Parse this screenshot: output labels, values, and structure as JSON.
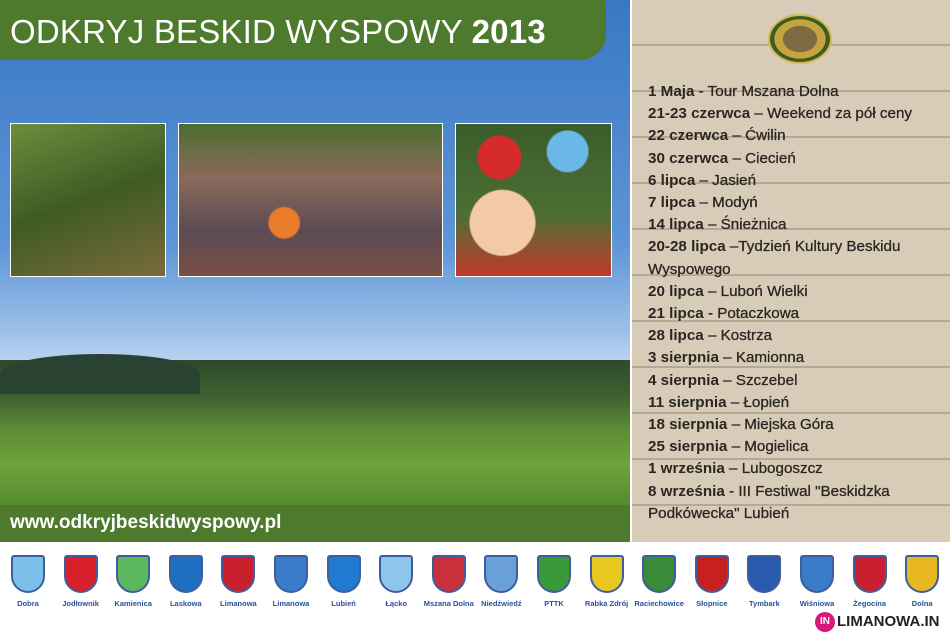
{
  "title": {
    "main": "ODKRYJ BESKID WYSPOWY",
    "year": "2013"
  },
  "website": "www.odkryjbeskidwyspowy.pl",
  "events": [
    {
      "date": "1 Maja",
      "sep": " - ",
      "name": "Tour Mszana Dolna"
    },
    {
      "date": "21-23 czerwca",
      "sep": " – ",
      "name": "Weekend za pół ceny"
    },
    {
      "date": "22 czerwca",
      "sep": " – ",
      "name": "Ćwilin"
    },
    {
      "date": "30 czerwca",
      "sep": " – ",
      "name": "Ciecień"
    },
    {
      "date": "6 lipca",
      "sep": " – ",
      "name": "Jasień"
    },
    {
      "date": "7 lipca",
      "sep": " – ",
      "name": "Modyń"
    },
    {
      "date": "14 lipca",
      "sep": " – ",
      "name": "Śnieżnica"
    },
    {
      "date": "20-28 lipca",
      "sep": " –",
      "name": "Tydzień Kultury Beskidu Wyspowego"
    },
    {
      "date": "20 lipca",
      "sep": " – ",
      "name": "Luboń Wielki"
    },
    {
      "date": "21 lipca",
      "sep": " - ",
      "name": "Potaczkowa"
    },
    {
      "date": "28 lipca",
      "sep": " – ",
      "name": "Kostrza"
    },
    {
      "date": "3 sierpnia",
      "sep": " – ",
      "name": "Kamionna"
    },
    {
      "date": "4 sierpnia",
      "sep": " – ",
      "name": "Szczebel"
    },
    {
      "date": "11 sierpnia",
      "sep": " – ",
      "name": "Łopień"
    },
    {
      "date": "18 sierpnia",
      "sep": " – ",
      "name": "Miejska Góra"
    },
    {
      "date": "25 sierpnia",
      "sep": " – ",
      "name": "Mogielica"
    },
    {
      "date": "1 września",
      "sep": " – ",
      "name": "Lubogoszcz"
    },
    {
      "date": "8 września",
      "sep": " -  ",
      "name": "III Festiwal \"Beskidzka Podkówecka\" Lubień"
    }
  ],
  "crests": [
    {
      "name": "Dobra",
      "color": "#7cc0ea"
    },
    {
      "name": "Jodłownik",
      "color": "#d8202c"
    },
    {
      "name": "Kamienica",
      "color": "#5cb85c"
    },
    {
      "name": "Laskowa",
      "color": "#1f6fc0"
    },
    {
      "name": "Limanowa",
      "color": "#c8202c"
    },
    {
      "name": "Limanowa",
      "color": "#3a7cc8"
    },
    {
      "name": "Lubień",
      "color": "#1f7ad0"
    },
    {
      "name": "Łącko",
      "color": "#8ec5ea"
    },
    {
      "name": "Mszana Dolna",
      "color": "#c8303c"
    },
    {
      "name": "Niedźwiedź",
      "color": "#6aa0d8"
    },
    {
      "name": "PTTK",
      "color": "#3a9a3a"
    },
    {
      "name": "Rabka Zdrój",
      "color": "#e8c820"
    },
    {
      "name": "Raciechowice",
      "color": "#3a8a3a"
    },
    {
      "name": "Słopnice",
      "color": "#c82020"
    },
    {
      "name": "Tymbark",
      "color": "#2a5ab0"
    },
    {
      "name": "Wiśniowa",
      "color": "#3a7cc8"
    },
    {
      "name": "Żegocina",
      "color": "#c82030"
    },
    {
      "name": "Dolna",
      "color": "#e8b820"
    }
  ],
  "watermark": "LIMANOWA.IN",
  "watermark_badge": "IN",
  "colors": {
    "green": "#4d7a2c",
    "sky": "#3a78c4",
    "wood": "#d8ccb9"
  }
}
